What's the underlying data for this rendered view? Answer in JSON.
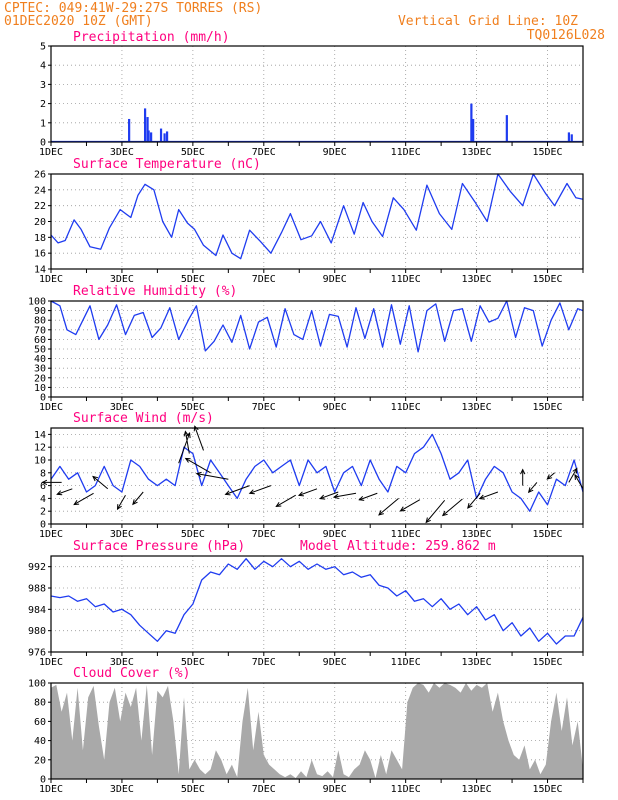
{
  "header": {
    "line1": "CPTEC:   049:41W-29:27S  TORRES (RS)",
    "line2": "01DEC2020 10Z (GMT)",
    "grid_note": "Vertical Grid Line: 10Z",
    "model_code": "TQ0126L028",
    "model_altitude": "Model Altitude: 259.862 m"
  },
  "colors": {
    "header": "#f07f1e",
    "title": "#ff007f",
    "line": "#1f3cf0",
    "cloud": "#a9a9a9",
    "arrow": "#000000"
  },
  "x_axis": {
    "labels": [
      "1DEC",
      "3DEC",
      "5DEC",
      "7DEC",
      "9DEC",
      "11DEC",
      "13DEC",
      "15DEC"
    ],
    "label_days": [
      1,
      3,
      5,
      7,
      9,
      11,
      13,
      15
    ],
    "range_days": [
      1,
      16
    ]
  },
  "chart_data": [
    {
      "type": "bar",
      "id": "precip",
      "title": "Precipitation (mm/h)",
      "ylim": [
        0,
        5
      ],
      "yticks": [
        0,
        1,
        2,
        3,
        4,
        5
      ],
      "points": [
        [
          3.2,
          1.2
        ],
        [
          3.65,
          1.75
        ],
        [
          3.72,
          1.3
        ],
        [
          3.75,
          0.6
        ],
        [
          3.82,
          0.5
        ],
        [
          4.1,
          0.7
        ],
        [
          4.2,
          0.45
        ],
        [
          4.27,
          0.55
        ],
        [
          12.85,
          2.0
        ],
        [
          12.9,
          1.2
        ],
        [
          13.85,
          1.4
        ],
        [
          15.6,
          0.5
        ],
        [
          15.68,
          0.4
        ]
      ]
    },
    {
      "type": "line",
      "id": "temp",
      "title": "Surface Temperature (nC)",
      "ylim": [
        14,
        26
      ],
      "yticks": [
        14,
        16,
        18,
        20,
        22,
        24,
        26
      ],
      "x": [
        1.0,
        1.2,
        1.4,
        1.65,
        1.85,
        2.1,
        2.4,
        2.65,
        2.95,
        3.25,
        3.45,
        3.65,
        3.9,
        4.15,
        4.4,
        4.6,
        4.85,
        5.05,
        5.3,
        5.65,
        5.85,
        6.1,
        6.35,
        6.6,
        6.9,
        7.2,
        7.5,
        7.75,
        8.05,
        8.35,
        8.6,
        8.9,
        9.25,
        9.55,
        9.8,
        10.05,
        10.35,
        10.65,
        10.95,
        11.3,
        11.6,
        11.95,
        12.3,
        12.6,
        12.95,
        13.3,
        13.6,
        13.95,
        14.3,
        14.6,
        14.95,
        15.2,
        15.55,
        15.8,
        16.0
      ],
      "y": [
        18.3,
        17.3,
        17.6,
        20.2,
        19.0,
        16.8,
        16.5,
        19.2,
        21.5,
        20.5,
        23.3,
        24.7,
        24.0,
        20.0,
        18.0,
        21.5,
        19.8,
        19.0,
        17.0,
        15.7,
        18.3,
        16.0,
        15.3,
        18.9,
        17.5,
        16.0,
        18.6,
        21.0,
        17.7,
        18.2,
        20.0,
        17.3,
        22.0,
        18.4,
        22.4,
        20.0,
        18.1,
        23.0,
        21.5,
        18.9,
        24.6,
        21.0,
        19.0,
        24.8,
        22.5,
        20.0,
        26.0,
        23.8,
        22.0,
        26.0,
        23.5,
        22.0,
        24.8,
        23.0,
        22.8
      ]
    },
    {
      "type": "line",
      "id": "rh",
      "title": "Relative Humidity (%)",
      "ylim": [
        0,
        100
      ],
      "yticks": [
        0,
        10,
        20,
        30,
        40,
        50,
        60,
        70,
        80,
        90,
        100
      ],
      "x": [
        1.0,
        1.25,
        1.45,
        1.7,
        1.9,
        2.1,
        2.35,
        2.6,
        2.85,
        3.1,
        3.35,
        3.6,
        3.85,
        4.1,
        4.35,
        4.6,
        4.9,
        5.1,
        5.35,
        5.6,
        5.85,
        6.1,
        6.35,
        6.6,
        6.85,
        7.1,
        7.35,
        7.6,
        7.85,
        8.1,
        8.35,
        8.6,
        8.85,
        9.1,
        9.35,
        9.6,
        9.85,
        10.1,
        10.35,
        10.6,
        10.85,
        11.1,
        11.35,
        11.6,
        11.85,
        12.1,
        12.35,
        12.6,
        12.85,
        13.1,
        13.35,
        13.6,
        13.85,
        14.1,
        14.35,
        14.6,
        14.85,
        15.1,
        15.35,
        15.6,
        15.85,
        16.0
      ],
      "y": [
        100,
        95,
        70,
        65,
        80,
        95,
        60,
        75,
        96,
        65,
        85,
        88,
        62,
        72,
        93,
        60,
        82,
        95,
        48,
        58,
        75,
        57,
        85,
        50,
        78,
        83,
        52,
        92,
        65,
        60,
        90,
        53,
        86,
        84,
        52,
        93,
        61,
        92,
        52,
        96,
        55,
        95,
        47,
        90,
        97,
        58,
        90,
        92,
        58,
        95,
        78,
        82,
        100,
        62,
        93,
        90,
        53,
        80,
        98,
        70,
        92,
        90
      ]
    },
    {
      "type": "line",
      "id": "wind",
      "title": "Surface Wind (m/s)",
      "ylim": [
        0,
        15
      ],
      "yticks": [
        0,
        2,
        4,
        6,
        8,
        10,
        12,
        14
      ],
      "x": [
        1.0,
        1.25,
        1.5,
        1.75,
        2.0,
        2.25,
        2.5,
        2.75,
        3.0,
        3.25,
        3.5,
        3.75,
        4.0,
        4.25,
        4.5,
        4.75,
        5.0,
        5.25,
        5.5,
        5.75,
        6.0,
        6.25,
        6.5,
        6.75,
        7.0,
        7.25,
        7.5,
        7.75,
        8.0,
        8.25,
        8.5,
        8.75,
        9.0,
        9.25,
        9.5,
        9.75,
        10.0,
        10.25,
        10.5,
        10.75,
        11.0,
        11.25,
        11.5,
        11.75,
        12.0,
        12.25,
        12.5,
        12.75,
        13.0,
        13.25,
        13.5,
        13.75,
        14.0,
        14.25,
        14.5,
        14.75,
        15.0,
        15.25,
        15.5,
        15.75,
        16.0
      ],
      "y": [
        7,
        9,
        7,
        8,
        5,
        6,
        9,
        6,
        5,
        10,
        9,
        7,
        6,
        7,
        6,
        12,
        11,
        6,
        10,
        8,
        6,
        4,
        7,
        9,
        10,
        8,
        9,
        10,
        6,
        10,
        8,
        9,
        5,
        8,
        9,
        6,
        10,
        7,
        5,
        9,
        8,
        11,
        12,
        14,
        11,
        7,
        8,
        10,
        4,
        7,
        9,
        8,
        5,
        4,
        2,
        5,
        3,
        7,
        6,
        10,
        5
      ],
      "arrows": [
        [
          1.3,
          6.5,
          180,
          6
        ],
        [
          1.6,
          5.5,
          200,
          5
        ],
        [
          2.2,
          4.8,
          210,
          7
        ],
        [
          2.6,
          5.5,
          140,
          6
        ],
        [
          3.1,
          4.5,
          240,
          5
        ],
        [
          3.6,
          5.0,
          230,
          5
        ],
        [
          4.6,
          9.5,
          70,
          10
        ],
        [
          4.9,
          11.0,
          100,
          7
        ],
        [
          5.3,
          11.5,
          110,
          8
        ],
        [
          5.5,
          8.0,
          150,
          9
        ],
        [
          6.0,
          7.0,
          170,
          10
        ],
        [
          6.6,
          6.0,
          200,
          8
        ],
        [
          7.2,
          6.0,
          200,
          7
        ],
        [
          7.9,
          4.5,
          210,
          7
        ],
        [
          8.5,
          5.5,
          200,
          6
        ],
        [
          9.1,
          5.0,
          200,
          6
        ],
        [
          9.6,
          4.8,
          190,
          7
        ],
        [
          10.2,
          4.8,
          200,
          6
        ],
        [
          10.8,
          4.0,
          220,
          8
        ],
        [
          11.4,
          3.8,
          210,
          7
        ],
        [
          12.1,
          3.7,
          230,
          9
        ],
        [
          12.6,
          3.9,
          220,
          8
        ],
        [
          13.1,
          4.8,
          230,
          6
        ],
        [
          13.6,
          5.0,
          200,
          6
        ],
        [
          14.3,
          6.0,
          90,
          5
        ],
        [
          14.7,
          6.5,
          230,
          4
        ],
        [
          15.2,
          8.0,
          220,
          3
        ],
        [
          15.6,
          6.5,
          60,
          5
        ],
        [
          16.0,
          5.5,
          120,
          5
        ]
      ]
    },
    {
      "type": "line",
      "id": "press",
      "title": "Surface Pressure (hPa)",
      "ylim": [
        976,
        994
      ],
      "yticks": [
        976,
        980,
        984,
        988,
        992
      ],
      "x": [
        1.0,
        1.25,
        1.5,
        1.75,
        2.0,
        2.25,
        2.5,
        2.75,
        3.0,
        3.25,
        3.5,
        3.75,
        4.0,
        4.25,
        4.5,
        4.75,
        5.0,
        5.25,
        5.5,
        5.75,
        6.0,
        6.25,
        6.5,
        6.75,
        7.0,
        7.25,
        7.5,
        7.75,
        8.0,
        8.25,
        8.5,
        8.75,
        9.0,
        9.25,
        9.5,
        9.75,
        10.0,
        10.25,
        10.5,
        10.75,
        11.0,
        11.25,
        11.5,
        11.75,
        12.0,
        12.25,
        12.5,
        12.75,
        13.0,
        13.25,
        13.5,
        13.75,
        14.0,
        14.25,
        14.5,
        14.75,
        15.0,
        15.25,
        15.5,
        15.75,
        16.0
      ],
      "y": [
        986.5,
        986.2,
        986.5,
        985.5,
        986.0,
        984.5,
        985.0,
        983.5,
        984.0,
        983.0,
        981.0,
        979.5,
        978.0,
        980.0,
        979.5,
        983.0,
        985.0,
        989.5,
        991.0,
        990.5,
        992.5,
        991.5,
        993.5,
        991.5,
        993.0,
        992.0,
        993.5,
        992.0,
        993.0,
        991.5,
        992.5,
        991.5,
        992.0,
        990.5,
        991.0,
        990.0,
        990.5,
        988.5,
        988.0,
        986.5,
        987.5,
        985.5,
        986.0,
        984.5,
        986.0,
        984.0,
        985.0,
        983.0,
        984.5,
        982.0,
        983.0,
        980.0,
        981.5,
        979.0,
        980.5,
        978.0,
        979.5,
        977.5,
        979.0,
        979.0,
        982.5
      ]
    },
    {
      "type": "area",
      "id": "cloud",
      "title": "Cloud Cover (%)",
      "ylim": [
        0,
        100
      ],
      "yticks": [
        0,
        20,
        40,
        60,
        80,
        100
      ],
      "x": [
        1.0,
        1.15,
        1.3,
        1.45,
        1.6,
        1.75,
        1.9,
        2.05,
        2.2,
        2.35,
        2.5,
        2.65,
        2.8,
        2.95,
        3.1,
        3.25,
        3.4,
        3.55,
        3.7,
        3.85,
        4.0,
        4.15,
        4.3,
        4.45,
        4.6,
        4.75,
        4.9,
        5.05,
        5.2,
        5.35,
        5.5,
        5.65,
        5.8,
        5.95,
        6.1,
        6.25,
        6.4,
        6.55,
        6.7,
        6.85,
        7.0,
        7.15,
        7.3,
        7.45,
        7.6,
        7.75,
        7.9,
        8.05,
        8.2,
        8.35,
        8.5,
        8.65,
        8.8,
        8.95,
        9.1,
        9.25,
        9.4,
        9.55,
        9.7,
        9.85,
        10.0,
        10.15,
        10.3,
        10.45,
        10.6,
        10.75,
        10.9,
        11.05,
        11.2,
        11.35,
        11.5,
        11.65,
        11.8,
        11.95,
        12.1,
        12.25,
        12.4,
        12.55,
        12.7,
        12.85,
        13.0,
        13.15,
        13.3,
        13.45,
        13.6,
        13.75,
        13.9,
        14.05,
        14.2,
        14.35,
        14.5,
        14.65,
        14.8,
        14.95,
        15.1,
        15.25,
        15.4,
        15.55,
        15.7,
        15.85,
        16.0
      ],
      "y": [
        95,
        98,
        70,
        90,
        40,
        95,
        30,
        85,
        97,
        55,
        20,
        80,
        95,
        60,
        90,
        75,
        95,
        40,
        98,
        25,
        92,
        85,
        97,
        60,
        5,
        85,
        10,
        20,
        10,
        5,
        10,
        30,
        20,
        5,
        15,
        2,
        60,
        95,
        30,
        70,
        25,
        15,
        10,
        5,
        2,
        5,
        1,
        8,
        2,
        20,
        5,
        3,
        8,
        2,
        30,
        5,
        2,
        10,
        15,
        30,
        20,
        1,
        25,
        5,
        30,
        20,
        10,
        80,
        95,
        100,
        98,
        90,
        100,
        95,
        100,
        98,
        95,
        90,
        100,
        92,
        98,
        95,
        100,
        70,
        90,
        60,
        40,
        25,
        20,
        35,
        10,
        20,
        5,
        15,
        60,
        90,
        50,
        85,
        35,
        60,
        10
      ]
    }
  ]
}
